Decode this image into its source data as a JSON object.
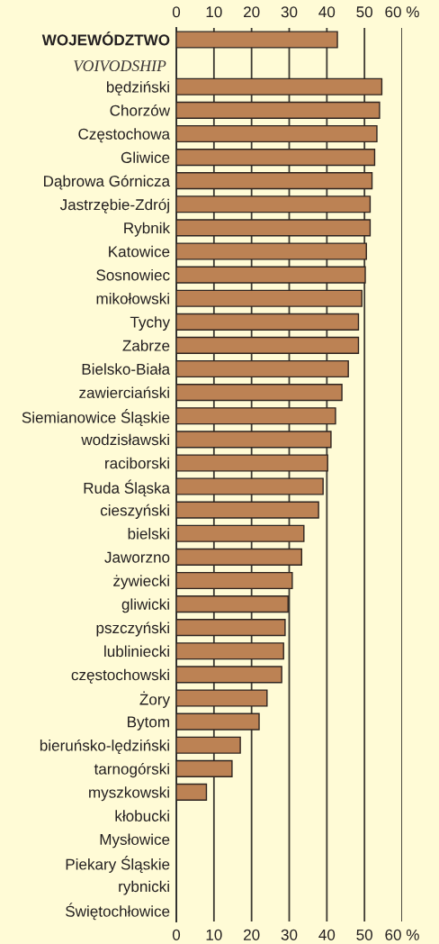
{
  "chart_data": {
    "type": "bar",
    "orientation": "horizontal",
    "categories": [
      "WOJEWÓDZTWO\nVOIVODSHIP",
      null,
      "będziński",
      "Chorzów",
      "Częstochowa",
      "Gliwice",
      "Dąbrowa Górnicza",
      "Jastrzębie-Zdrój",
      "Rybnik",
      "Katowice",
      "Sosnowiec",
      "mikołowski",
      "Tychy",
      "Zabrze",
      "Bielsko-Biała",
      "zawierciański",
      "Siemianowice Śląskie",
      "wodzisławski",
      "raciborski",
      "Ruda Śląska",
      "cieszyński",
      "bielski",
      "Jaworzno",
      "żywiecki",
      "gliwicki",
      "pszczyński",
      "lubliniecki",
      "częstochowski",
      "Żory",
      "Bytom",
      "bieruńsko-lędziński",
      "tarnogórski",
      "myszkowski",
      "kłobucki",
      "Mysłowice",
      "Piekary Śląskie",
      "rybnicki",
      "Świętochłowice"
    ],
    "values": [
      42.8,
      null,
      54.6,
      54.0,
      53.3,
      52.7,
      52.0,
      51.5,
      51.5,
      50.5,
      50.2,
      49.3,
      48.4,
      48.4,
      45.7,
      44.0,
      42.3,
      41.1,
      40.2,
      39.0,
      37.8,
      33.9,
      33.3,
      30.8,
      29.7,
      28.9,
      28.5,
      28.0,
      24.1,
      22.0,
      17.0,
      14.8,
      8.0,
      null,
      null,
      null,
      null,
      null
    ],
    "color": "#bc8254",
    "xlim": [
      0,
      60
    ],
    "xticks": [
      0,
      10,
      20,
      30,
      40,
      50,
      {
        "value": 60,
        "label": "60 %"
      }
    ],
    "x2lim": [
      0,
      60
    ],
    "x2ticks": [
      0,
      10,
      20,
      30,
      40,
      50,
      {
        "value": 60,
        "label": "60 %"
      }
    ],
    "grid": "x",
    "legend": false
  }
}
